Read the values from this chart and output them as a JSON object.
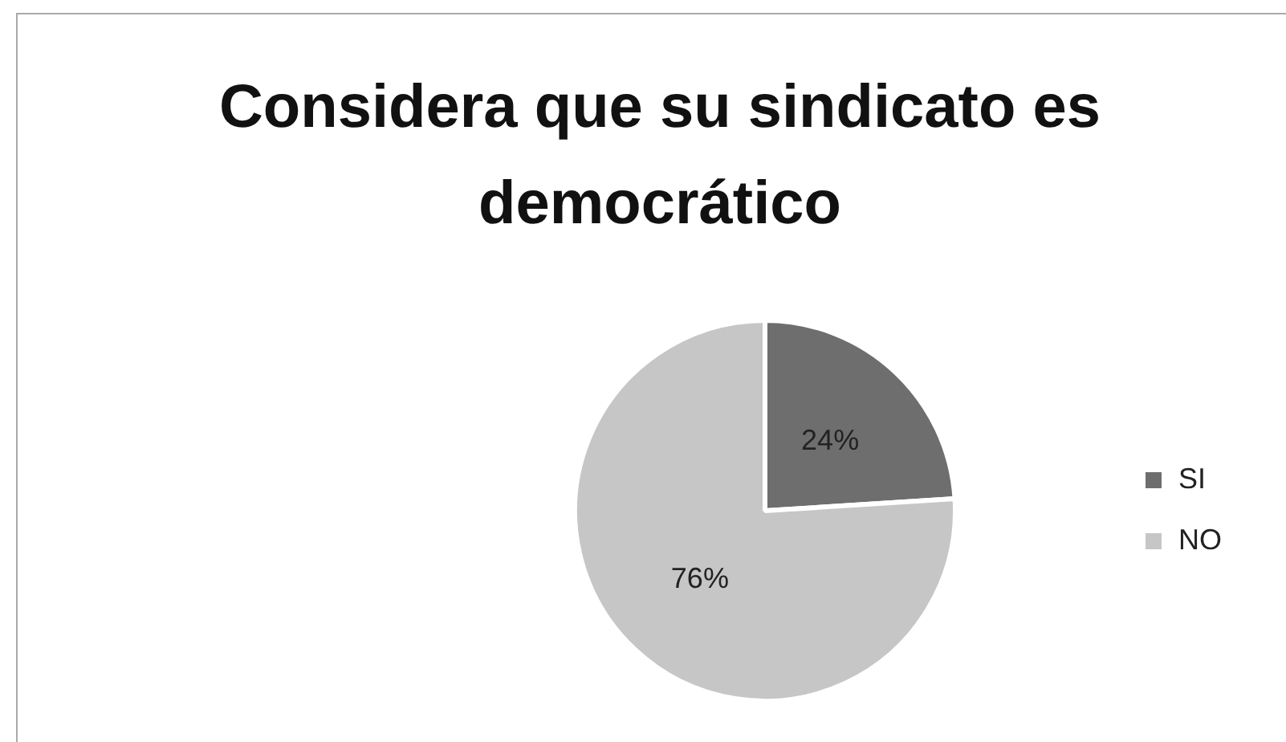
{
  "chart_data": {
    "type": "pie",
    "title": "Considera que su sindicato es democrático",
    "categories": [
      "SI",
      "NO"
    ],
    "values": [
      24,
      76
    ],
    "value_labels": [
      "24%",
      "76%"
    ],
    "colors": [
      "#6e6e6e",
      "#c6c6c6"
    ],
    "legend": "right"
  }
}
